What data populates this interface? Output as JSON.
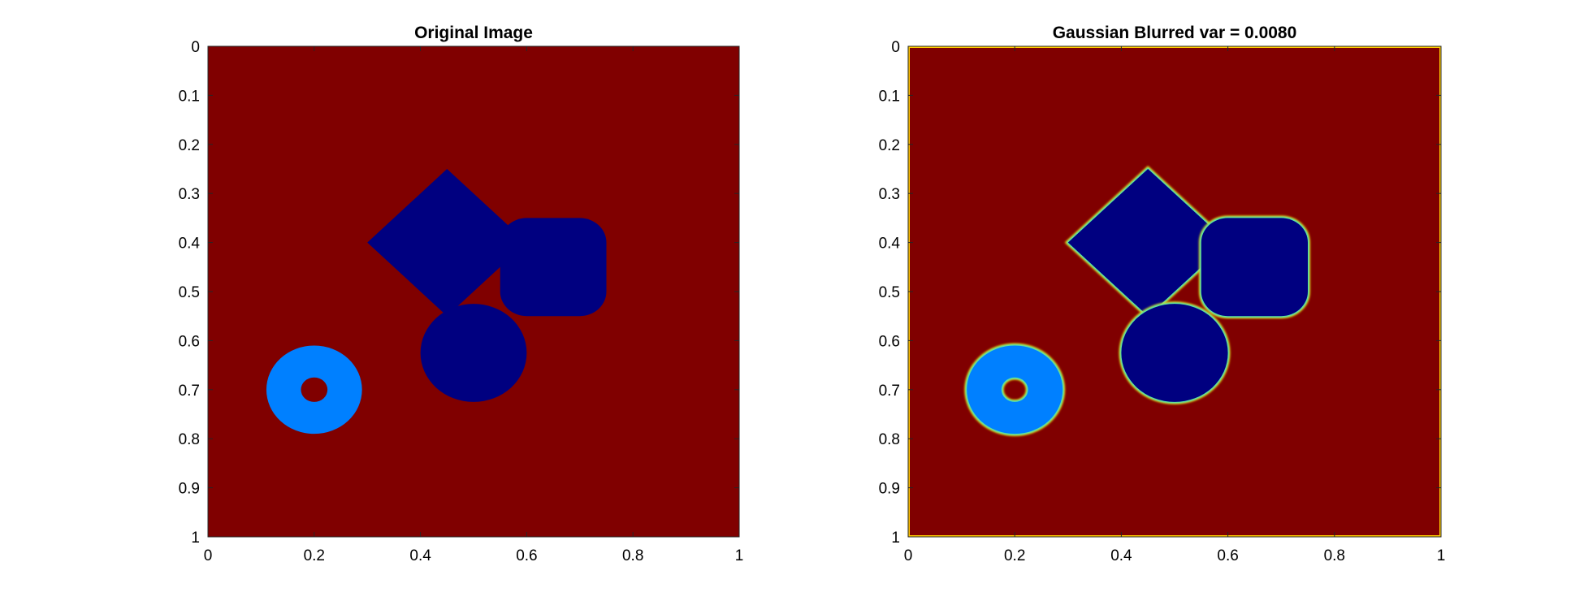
{
  "chart_data": [
    {
      "type": "heatmap",
      "title": "Original Image",
      "xlim": [
        0,
        1
      ],
      "ylim": [
        0,
        1
      ],
      "y_reversed": true,
      "xticks": [
        "0",
        "0.2",
        "0.4",
        "0.6",
        "0.8",
        "1"
      ],
      "yticks": [
        "0",
        "0.1",
        "0.2",
        "0.3",
        "0.4",
        "0.5",
        "0.6",
        "0.7",
        "0.8",
        "0.9",
        "1"
      ],
      "background_color": "#800000",
      "edge_blur": false,
      "shapes": [
        {
          "kind": "diamond",
          "cx": 0.45,
          "cy": 0.4,
          "r": 0.15,
          "color": "#000080"
        },
        {
          "kind": "rounded-rect",
          "x0": 0.55,
          "y0": 0.35,
          "x1": 0.75,
          "y1": 0.55,
          "corner": 0.05,
          "color": "#000080"
        },
        {
          "kind": "circle",
          "cx": 0.5,
          "cy": 0.625,
          "r": 0.1,
          "color": "#000080"
        },
        {
          "kind": "ring",
          "cx": 0.2,
          "cy": 0.7,
          "r_outer": 0.09,
          "r_inner": 0.025,
          "color": "#0080ff"
        }
      ]
    },
    {
      "type": "heatmap",
      "title": "Gaussian Blurred var = 0.0080",
      "xlim": [
        0,
        1
      ],
      "ylim": [
        0,
        1
      ],
      "y_reversed": true,
      "xticks": [
        "0",
        "0.2",
        "0.4",
        "0.6",
        "0.8",
        "1"
      ],
      "yticks": [
        "0",
        "0.1",
        "0.2",
        "0.3",
        "0.4",
        "0.5",
        "0.6",
        "0.7",
        "0.8",
        "0.9",
        "1"
      ],
      "background_color": "#800000",
      "edge_blur": true,
      "shapes": [
        {
          "kind": "diamond",
          "cx": 0.45,
          "cy": 0.4,
          "r": 0.15,
          "color": "#000080"
        },
        {
          "kind": "rounded-rect",
          "x0": 0.55,
          "y0": 0.35,
          "x1": 0.75,
          "y1": 0.55,
          "corner": 0.05,
          "color": "#000080"
        },
        {
          "kind": "circle",
          "cx": 0.5,
          "cy": 0.625,
          "r": 0.1,
          "color": "#000080"
        },
        {
          "kind": "ring",
          "cx": 0.2,
          "cy": 0.7,
          "r_outer": 0.09,
          "r_inner": 0.025,
          "color": "#0080ff"
        }
      ]
    }
  ]
}
